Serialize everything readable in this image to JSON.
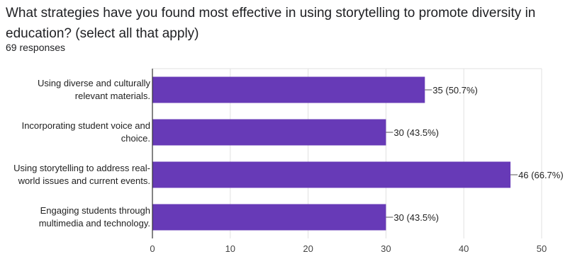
{
  "question": {
    "title": "What strategies have you found most effective in using storytelling to promote diversity in education? (select all that apply)",
    "responses": "69 responses"
  },
  "colors": {
    "bar": "#673ab7",
    "grid": "#e0e0e0",
    "axis": "#333333",
    "text": "#202124"
  },
  "chart_data": {
    "type": "bar",
    "orientation": "horizontal",
    "categories": [
      [
        "Using diverse and culturally",
        "relevant materials."
      ],
      [
        "Incorporating student voice and",
        "choice."
      ],
      [
        "Using storytelling to address real-",
        "world issues and current events."
      ],
      [
        "Engaging students through",
        "multimedia and technology."
      ]
    ],
    "values": [
      35,
      30,
      46,
      30
    ],
    "data_labels": [
      "35 (50.7%)",
      "30 (43.5%)",
      "46 (66.7%)",
      "30 (43.5%)"
    ],
    "xlim": [
      0,
      50
    ],
    "ticks": [
      0,
      10,
      20,
      30,
      40,
      50
    ],
    "grid": true,
    "legend": "none"
  }
}
